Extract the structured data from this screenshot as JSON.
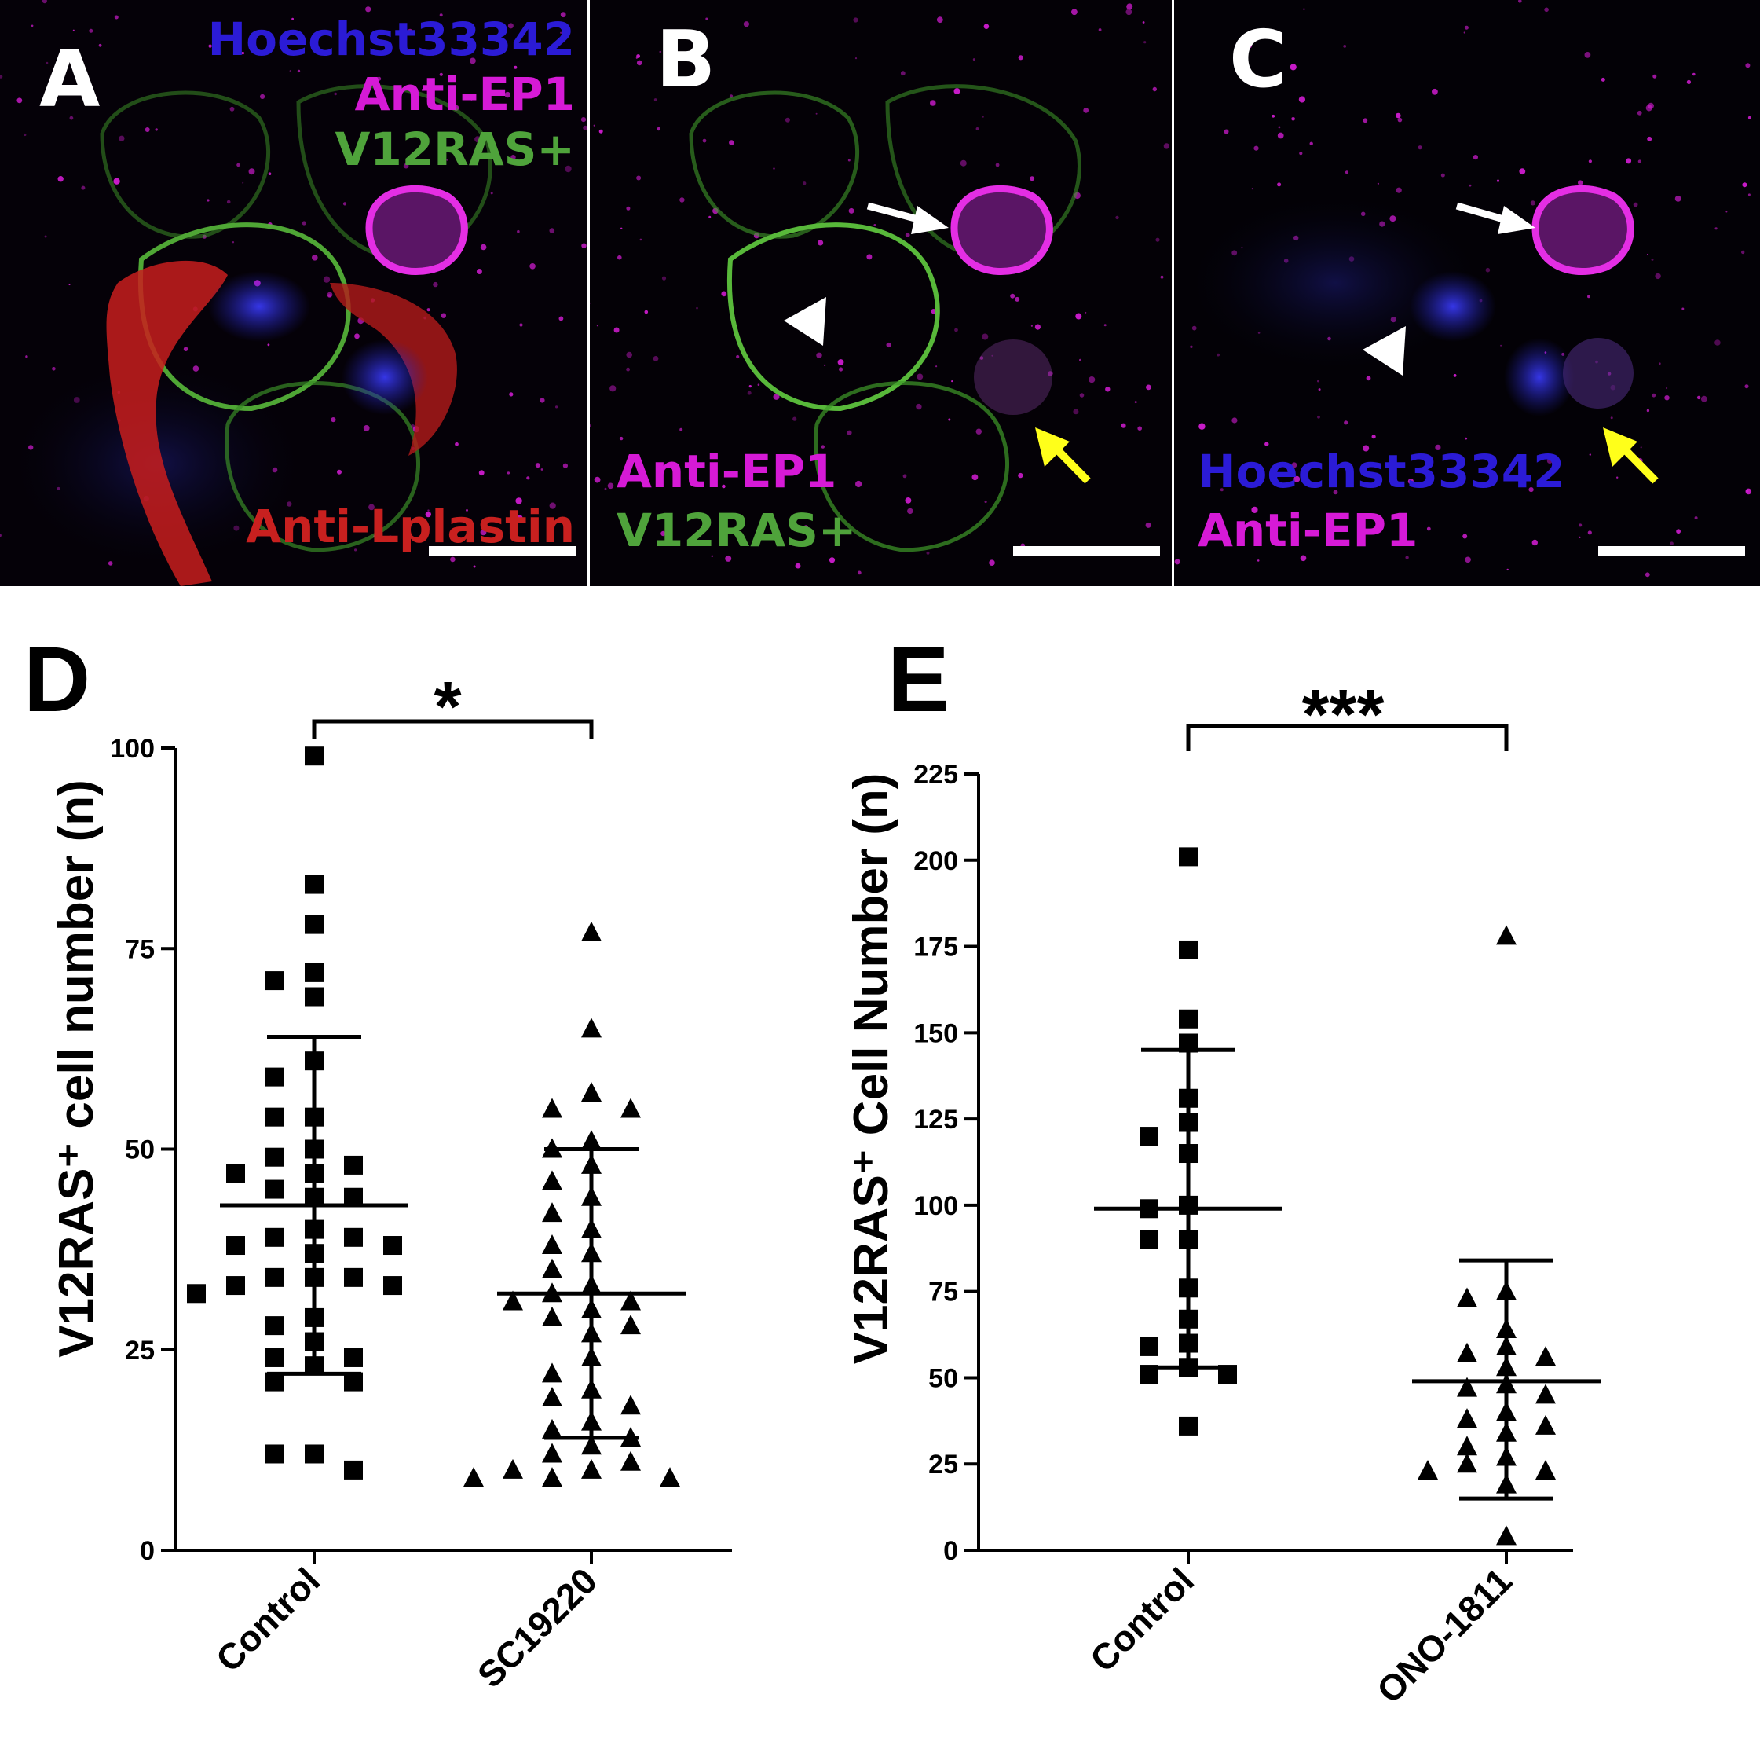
{
  "micrographs": [
    {
      "letter": "A",
      "labels": [
        {
          "text": "Hoechst33342",
          "color": "#2b1bd6"
        },
        {
          "text": "Anti-EP1",
          "color": "#d61ad6"
        },
        {
          "text": "V12RAS+",
          "color": "#4fa33b"
        },
        {
          "text": "Anti-Lplastin",
          "color": "#c8201f"
        }
      ]
    },
    {
      "letter": "B",
      "labels": [
        {
          "text": "Anti-EP1",
          "color": "#d61ad6"
        },
        {
          "text": "V12RAS+",
          "color": "#4fa33b"
        }
      ]
    },
    {
      "letter": "C",
      "labels": [
        {
          "text": "Hoechst33342",
          "color": "#2b1bd6"
        },
        {
          "text": "Anti-EP1",
          "color": "#d61ad6"
        }
      ]
    }
  ],
  "chart_data": [
    {
      "panel": "D",
      "type": "scatter",
      "ylabel": "V12RAS⁺ cell number (n)",
      "ylim": [
        0,
        100
      ],
      "yticks": [
        0,
        25,
        50,
        75,
        100
      ],
      "categories": [
        "Control",
        "SC19220"
      ],
      "significance": "*",
      "series": [
        {
          "category": "Control",
          "marker": "square",
          "mean": 43,
          "sd_upper": 64,
          "sd_lower": 22,
          "values": [
            99,
            83,
            78,
            72,
            71,
            69,
            61,
            59,
            54,
            54,
            50,
            49,
            48,
            47,
            47,
            45,
            44,
            44,
            40,
            39,
            39,
            38,
            38,
            37,
            34,
            34,
            34,
            33,
            33,
            32,
            29,
            28,
            26,
            24,
            24,
            23,
            21,
            21,
            12,
            12,
            10
          ]
        },
        {
          "category": "SC19220",
          "marker": "triangle",
          "mean": 32,
          "sd_upper": 50,
          "sd_lower": 14,
          "values": [
            77,
            65,
            57,
            55,
            55,
            51,
            50,
            48,
            46,
            44,
            42,
            40,
            38,
            37,
            35,
            33,
            32,
            31,
            31,
            30,
            29,
            28,
            27,
            24,
            22,
            20,
            19,
            18,
            16,
            15,
            14,
            13,
            12,
            11,
            10,
            10,
            9,
            9,
            9
          ]
        }
      ]
    },
    {
      "panel": "E",
      "type": "scatter",
      "ylabel": "V12RAS⁺ Cell Number (n)",
      "ylim": [
        0,
        225
      ],
      "yticks": [
        0,
        25,
        50,
        75,
        100,
        125,
        150,
        175,
        200,
        225
      ],
      "categories": [
        "Control",
        "ONO-1811"
      ],
      "significance": "***",
      "series": [
        {
          "category": "Control",
          "marker": "square",
          "mean": 99,
          "sd_upper": 145,
          "sd_lower": 53,
          "values": [
            201,
            174,
            154,
            147,
            131,
            124,
            120,
            115,
            100,
            99,
            90,
            90,
            76,
            67,
            60,
            59,
            53,
            51,
            51,
            36
          ]
        },
        {
          "category": "ONO-1811",
          "marker": "triangle",
          "mean": 49,
          "sd_upper": 84,
          "sd_lower": 15,
          "values": [
            178,
            75,
            73,
            64,
            59,
            57,
            56,
            53,
            48,
            47,
            45,
            40,
            38,
            36,
            34,
            30,
            27,
            25,
            23,
            23,
            19,
            4
          ]
        }
      ]
    }
  ]
}
